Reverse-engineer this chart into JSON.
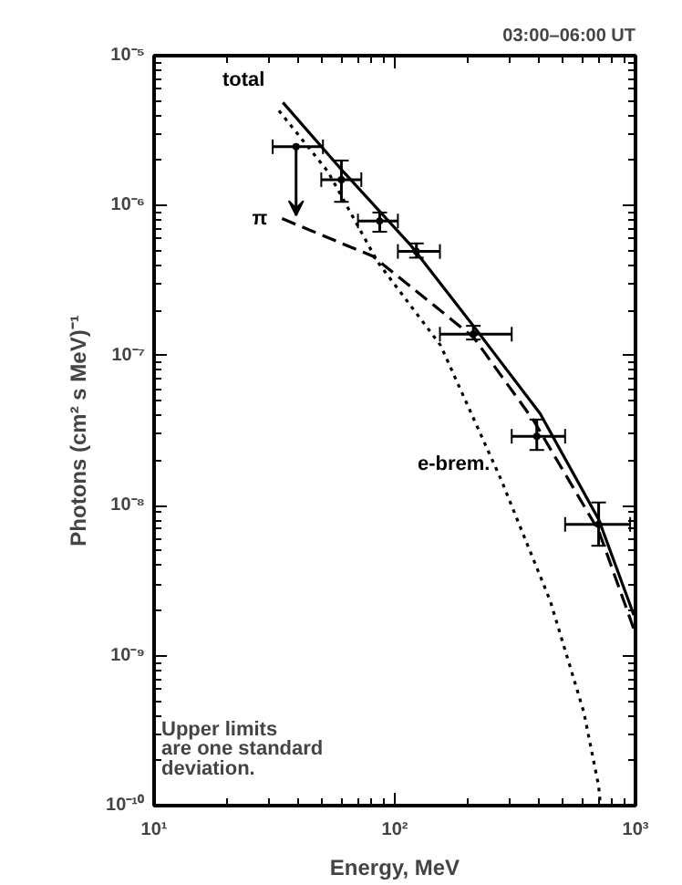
{
  "chart_data": {
    "type": "line",
    "title": "03:00–06:00 UT",
    "xlabel": "Energy, MeV",
    "ylabel": "Photons (cm² s MeV)⁻¹",
    "log": "xy",
    "xlim": [
      10,
      1000
    ],
    "ylim": [
      1e-10,
      1e-05
    ],
    "xticks": [
      {
        "value": 10,
        "label": "10¹"
      },
      {
        "value": 100,
        "label": "10²"
      },
      {
        "value": 1000,
        "label": "10³"
      }
    ],
    "yticks": [
      {
        "value": 1e-10,
        "label": "10⁻¹⁰"
      },
      {
        "value": 1e-09,
        "label": "10⁻⁹"
      },
      {
        "value": 1e-08,
        "label": "10⁻⁸"
      },
      {
        "value": 1e-07,
        "label": "10⁻⁷"
      },
      {
        "value": 1e-06,
        "label": "10⁻⁶"
      },
      {
        "value": 1e-05,
        "label": "10⁻⁵"
      }
    ],
    "grid": false,
    "marker": "none",
    "series": [
      {
        "name": "total",
        "color": "#000000",
        "line_style": "solid",
        "x": [
          34.3,
          61,
          117,
          212,
          402,
          703,
          985
        ],
        "values": [
          4.87e-06,
          1.69e-06,
          5.4e-07,
          1.58e-07,
          4.1e-08,
          8.1e-09,
          1.86e-09
        ]
      },
      {
        "name": "π",
        "color": "#000000",
        "line_style": "dashed",
        "x": [
          34,
          81,
          212,
          377,
          703,
          985
        ],
        "values": [
          8.2e-07,
          4.6e-07,
          1.33e-07,
          3.7e-08,
          6.8e-09,
          1.5e-09
        ]
      },
      {
        "name": "e-brem.",
        "color": "#000000",
        "line_style": "dotted",
        "x": [
          33,
          52.7,
          85,
          155,
          276,
          443,
          610,
          703,
          715
        ],
        "values": [
          4.3e-06,
          1.69e-06,
          4.2e-07,
          1.17e-07,
          1.5e-08,
          2.3e-09,
          4.2e-10,
          1.35e-10,
          1e-10
        ]
      },
      {
        "type": "scatter",
        "color": "#000000",
        "marker": "circle",
        "x": [
          60,
          86.6,
          123,
          212,
          389,
          703
        ],
        "values": [
          1.49e-06,
          7.9e-07,
          4.95e-07,
          1.39e-07,
          2.9e-08,
          7.5e-09
        ],
        "errors": [
          [
            1.06e-06,
            2e-06
          ],
          [
            6.7e-07,
            9e-07
          ],
          [
            4.5e-07,
            5.6e-07
          ],
          [
            1.28e-07,
            1.58e-07
          ],
          [
            2.35e-08,
            3.75e-08
          ],
          [
            5.4e-09,
            1.05e-08
          ]
        ],
        "xerrors": [
          [
            49.5,
            72.6
          ],
          [
            70.3,
            103
          ],
          [
            103,
            154
          ],
          [
            154,
            306
          ],
          [
            306,
            510
          ],
          [
            510,
            950
          ]
        ]
      },
      {
        "type": "scatter",
        "color": "#000000",
        "marker": "circle",
        "x": [
          38.9
        ],
        "values": [
          2.47e-06
        ],
        "errors": [
          [
            8.6e-07,
            2.47e-06
          ]
        ],
        "xerrors": [
          [
            31.1,
            50.3
          ]
        ]
      }
    ],
    "annotations": [
      "Upper limits\nare one standard\ndeviation."
    ]
  }
}
